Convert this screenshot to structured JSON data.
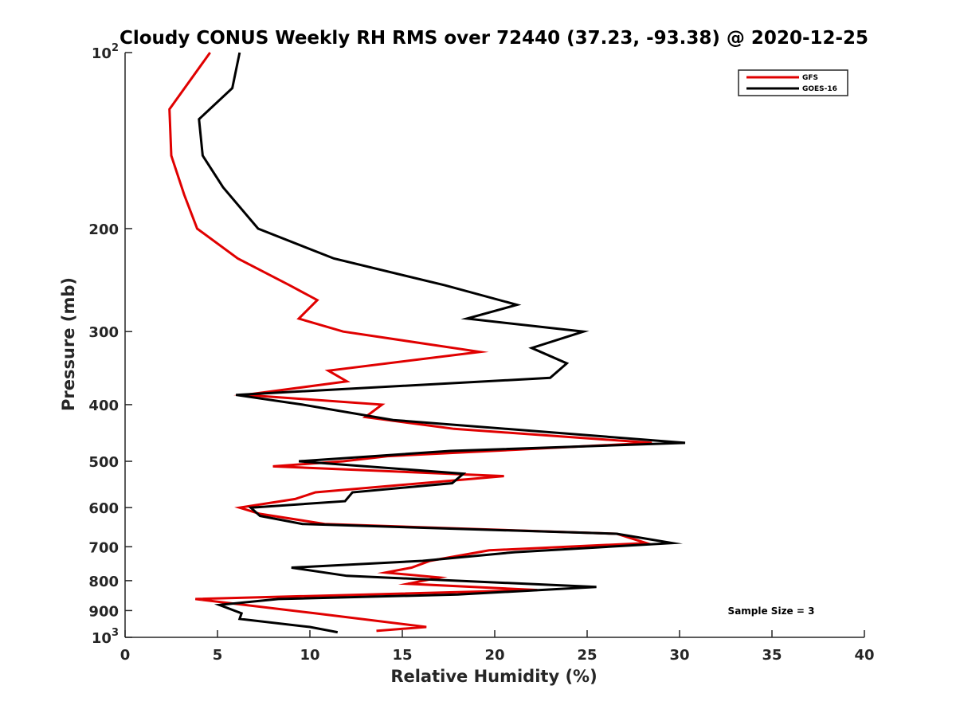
{
  "chart_data": {
    "type": "line",
    "title": "Cloudy CONUS Weekly RH RMS over 72440 (37.23, -93.38) @ 2020-12-25",
    "xlabel": "Relative Humidity (%)",
    "ylabel": "Pressure (mb)",
    "xlim": [
      0,
      40
    ],
    "ylim": [
      100,
      1000
    ],
    "y_scale": "log",
    "y_reversed": true,
    "grid": false,
    "legend_position": "top-right",
    "x_ticks": [
      "0",
      "5",
      "10",
      "15",
      "20",
      "25",
      "30",
      "35",
      "40"
    ],
    "y_ticks": [
      {
        "value": 100,
        "base": "10",
        "exp": "2"
      },
      {
        "value": 200,
        "label": "200"
      },
      {
        "value": 300,
        "label": "300"
      },
      {
        "value": 400,
        "label": "400"
      },
      {
        "value": 500,
        "label": "500"
      },
      {
        "value": 600,
        "label": "600"
      },
      {
        "value": 700,
        "label": "700"
      },
      {
        "value": 800,
        "label": "800"
      },
      {
        "value": 900,
        "label": "900"
      },
      {
        "value": 1000,
        "base": "10",
        "exp": "3"
      }
    ],
    "series": [
      {
        "name": "GFS",
        "color": "#e00000",
        "points": [
          [
            4.6,
            100
          ],
          [
            2.4,
            125
          ],
          [
            2.5,
            150
          ],
          [
            3.2,
            175
          ],
          [
            3.9,
            200
          ],
          [
            6.1,
            225
          ],
          [
            8.9,
            250
          ],
          [
            10.4,
            265
          ],
          [
            9.4,
            285
          ],
          [
            11.8,
            300
          ],
          [
            19.2,
            325
          ],
          [
            11.0,
            350
          ],
          [
            12.0,
            365
          ],
          [
            6.5,
            385
          ],
          [
            13.9,
            400
          ],
          [
            13.0,
            420
          ],
          [
            17.8,
            440
          ],
          [
            28.5,
            465
          ],
          [
            14.2,
            490
          ],
          [
            11.8,
            500
          ],
          [
            8.0,
            510
          ],
          [
            20.5,
            530
          ],
          [
            10.3,
            565
          ],
          [
            9.2,
            580
          ],
          [
            6.2,
            600
          ],
          [
            7.3,
            615
          ],
          [
            10.8,
            640
          ],
          [
            26.6,
            665
          ],
          [
            28.2,
            690
          ],
          [
            19.7,
            710
          ],
          [
            16.5,
            740
          ],
          [
            15.5,
            760
          ],
          [
            14.1,
            775
          ],
          [
            17.0,
            790
          ],
          [
            15.3,
            810
          ],
          [
            22.3,
            830
          ],
          [
            3.8,
            860
          ],
          [
            10.3,
            910
          ],
          [
            16.3,
            960
          ],
          [
            13.6,
            975
          ]
        ]
      },
      {
        "name": "GOES-16",
        "color": "#000000",
        "points": [
          [
            6.2,
            100
          ],
          [
            5.8,
            115
          ],
          [
            4.0,
            130
          ],
          [
            4.2,
            150
          ],
          [
            5.3,
            170
          ],
          [
            7.2,
            200
          ],
          [
            11.3,
            225
          ],
          [
            17.3,
            250
          ],
          [
            21.2,
            270
          ],
          [
            18.5,
            285
          ],
          [
            24.8,
            300
          ],
          [
            22.0,
            320
          ],
          [
            23.9,
            340
          ],
          [
            23.0,
            360
          ],
          [
            6.0,
            385
          ],
          [
            9.6,
            400
          ],
          [
            14.5,
            425
          ],
          [
            30.3,
            465
          ],
          [
            17.6,
            480
          ],
          [
            9.4,
            500
          ],
          [
            18.3,
            525
          ],
          [
            17.7,
            545
          ],
          [
            12.3,
            565
          ],
          [
            11.9,
            585
          ],
          [
            6.8,
            600
          ],
          [
            7.3,
            620
          ],
          [
            9.6,
            640
          ],
          [
            26.6,
            665
          ],
          [
            29.6,
            690
          ],
          [
            21.1,
            715
          ],
          [
            16.1,
            740
          ],
          [
            9.0,
            760
          ],
          [
            12.0,
            785
          ],
          [
            25.5,
            820
          ],
          [
            18.0,
            845
          ],
          [
            8.3,
            860
          ],
          [
            5.1,
            880
          ],
          [
            6.3,
            910
          ],
          [
            6.2,
            930
          ],
          [
            10.0,
            960
          ],
          [
            11.5,
            980
          ]
        ]
      }
    ],
    "annotation": "Sample Size = 3"
  }
}
